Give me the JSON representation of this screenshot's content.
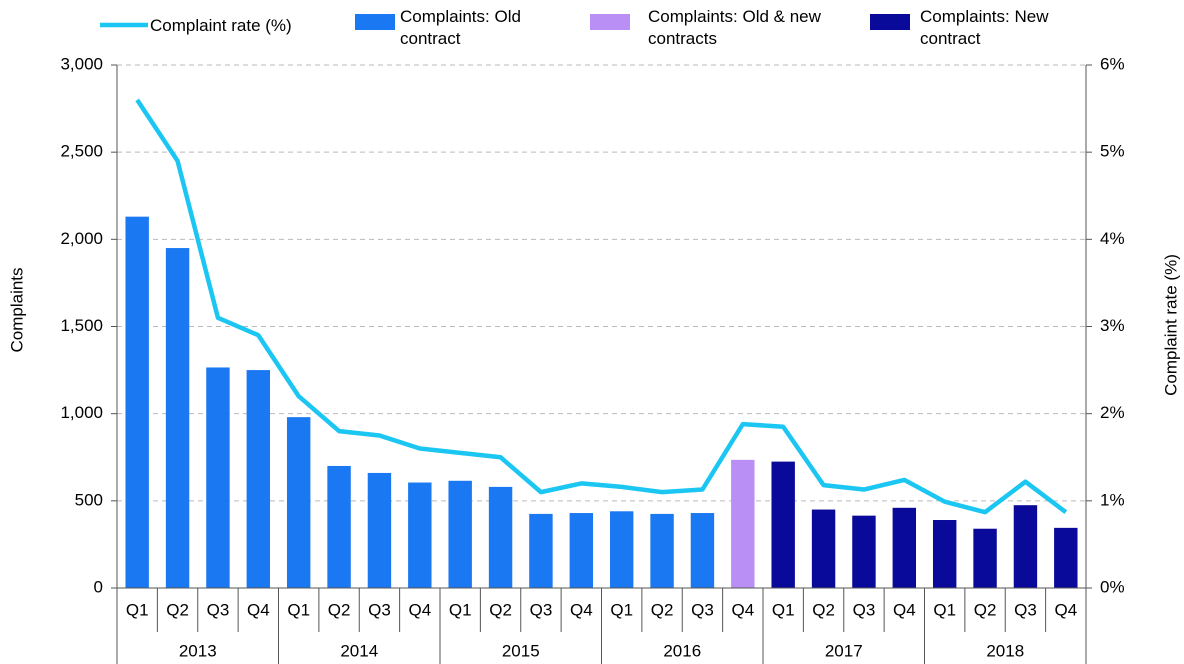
{
  "chart_data": {
    "type": "bar",
    "categories": [
      "Q1",
      "Q2",
      "Q3",
      "Q4",
      "Q1",
      "Q2",
      "Q3",
      "Q4",
      "Q1",
      "Q2",
      "Q3",
      "Q4",
      "Q1",
      "Q2",
      "Q3",
      "Q4",
      "Q1",
      "Q2",
      "Q3",
      "Q4",
      "Q1",
      "Q2",
      "Q3",
      "Q4"
    ],
    "years": [
      "2013",
      "2014",
      "2015",
      "2016",
      "2017",
      "2018"
    ],
    "y_label": "Complaints",
    "y2_label": "Complaint rate (%)",
    "ylim": [
      0,
      3000
    ],
    "yticks": [
      0,
      500,
      {
        "value": 1000,
        "label": "1,000"
      },
      {
        "value": 1500,
        "label": "1,500"
      },
      {
        "value": 2000,
        "label": "2,000"
      },
      {
        "value": 2500,
        "label": "2,500"
      },
      {
        "value": 3000,
        "label": "3,000"
      }
    ],
    "y2lim": [
      0,
      6
    ],
    "y2ticks": [
      {
        "value": 0,
        "label": "0%"
      },
      {
        "value": 1,
        "label": "1%"
      },
      {
        "value": 2,
        "label": "2%"
      },
      {
        "value": 3,
        "label": "3%"
      },
      {
        "value": 4,
        "label": "4%"
      },
      {
        "value": 5,
        "label": "5%"
      },
      {
        "value": 6,
        "label": "6%"
      }
    ],
    "grid": true,
    "series": [
      {
        "name": "Complaint rate (%)",
        "type": "line",
        "axis": "y2",
        "color": "#1cc6f2",
        "values": [
          5.6,
          4.9,
          3.1,
          2.9,
          2.2,
          1.8,
          1.75,
          1.6,
          1.55,
          1.5,
          1.1,
          1.2,
          1.16,
          1.1,
          1.13,
          1.88,
          1.85,
          1.18,
          1.13,
          1.24,
          0.99,
          0.87,
          1.22,
          0.87
        ]
      },
      {
        "name": "Complaints: Old contract",
        "type": "bar",
        "color": "#1a78f2",
        "values": [
          2130,
          1950,
          1265,
          1250,
          980,
          700,
          660,
          605,
          615,
          580,
          425,
          430,
          440,
          425,
          430,
          null,
          null,
          null,
          null,
          null,
          null,
          null,
          null,
          null
        ]
      },
      {
        "name": "Complaints: Old & new contracts",
        "type": "bar",
        "color": "#b98ef5",
        "values": [
          null,
          null,
          null,
          null,
          null,
          null,
          null,
          null,
          null,
          null,
          null,
          null,
          null,
          null,
          null,
          735,
          null,
          null,
          null,
          null,
          null,
          null,
          null,
          null
        ]
      },
      {
        "name": "Complaints: New contract",
        "type": "bar",
        "color": "#0a0a9a",
        "values": [
          null,
          null,
          null,
          null,
          null,
          null,
          null,
          null,
          null,
          null,
          null,
          null,
          null,
          null,
          null,
          null,
          725,
          450,
          415,
          460,
          390,
          340,
          475,
          345
        ]
      }
    ]
  }
}
